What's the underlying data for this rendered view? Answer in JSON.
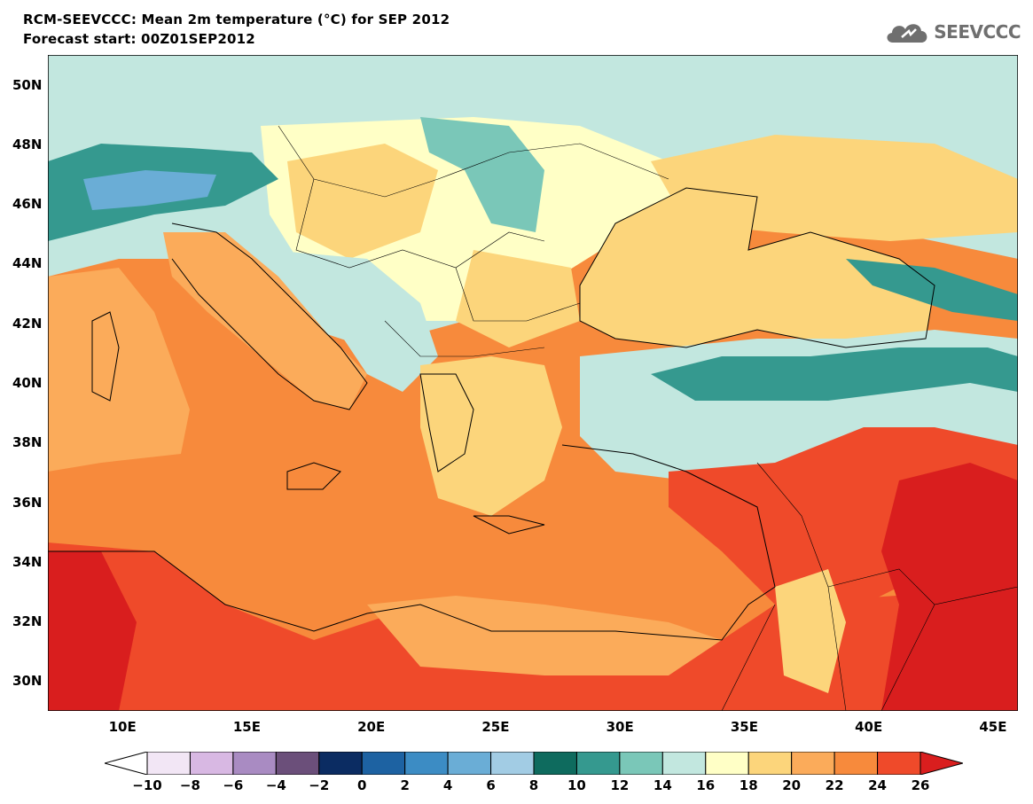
{
  "title": {
    "line1": "RCM-SEEVCCC: Mean 2m temperature (°C) for SEP 2012",
    "line2": "Forecast start: 00Z01SEP2012"
  },
  "logo": {
    "text": "SEEVCCC",
    "icon": "cloud-icon"
  },
  "map": {
    "lat_labels": [
      "50N",
      "48N",
      "46N",
      "44N",
      "42N",
      "40N",
      "38N",
      "36N",
      "34N",
      "32N",
      "30N"
    ],
    "lon_labels": [
      "10E",
      "15E",
      "20E",
      "25E",
      "30E",
      "35E",
      "40E",
      "45E"
    ],
    "lon_range": [
      7,
      46
    ],
    "lat_range": [
      29,
      51
    ]
  },
  "colorbar": {
    "labels": [
      "−10",
      "−8",
      "−6",
      "−4",
      "−2",
      "0",
      "2",
      "4",
      "6",
      "8",
      "10",
      "12",
      "14",
      "16",
      "18",
      "20",
      "22",
      "24",
      "26"
    ],
    "colors": [
      "#ffffff",
      "#f2e6f5",
      "#d8b8e3",
      "#a98bc2",
      "#6b4f7a",
      "#0b2c62",
      "#1d62a2",
      "#3c8cc4",
      "#6aadd6",
      "#a2cce4",
      "#0e6b5e",
      "#35998f",
      "#7ac7b8",
      "#c2e7df",
      "#ffffc6",
      "#fcd57b",
      "#fbab5a",
      "#f78a3c",
      "#ef4a2a",
      "#d91e1e"
    ]
  }
}
